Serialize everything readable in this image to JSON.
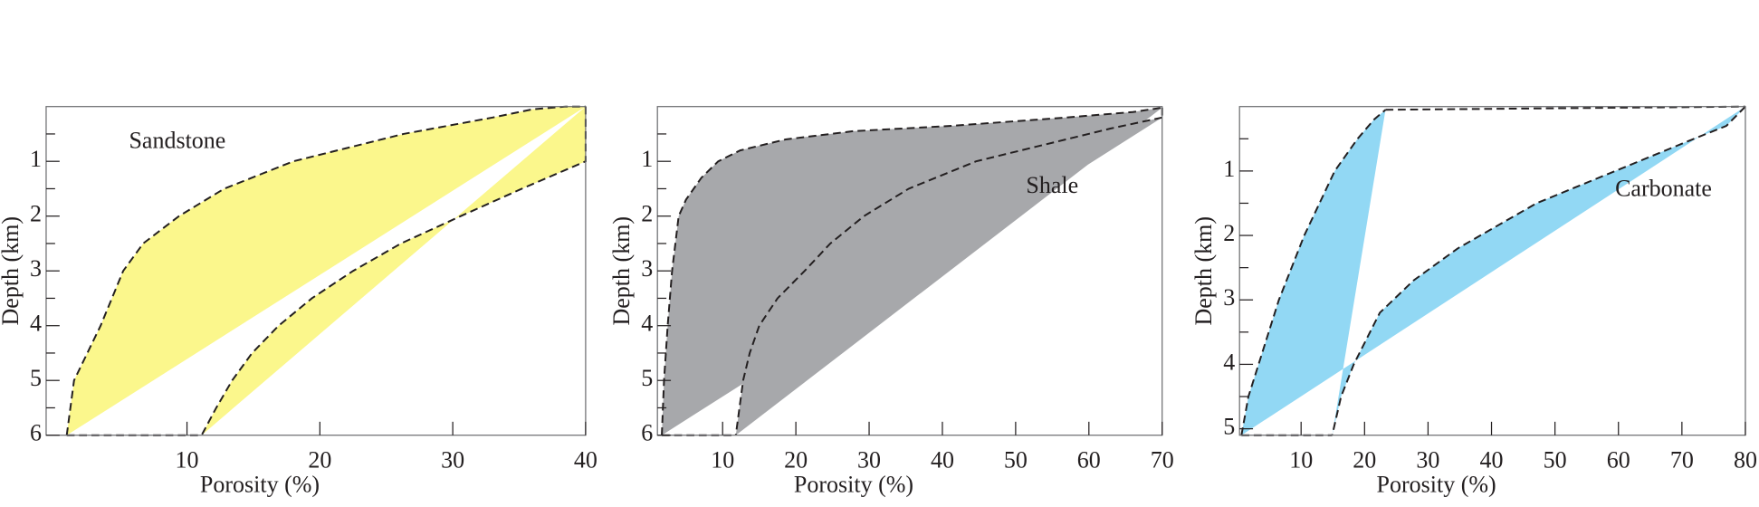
{
  "chart_data": [
    {
      "type": "band",
      "label": "Sandstone",
      "color": "#fbf78c",
      "x_label": "Porosity (%)",
      "y_label": "Depth (km)",
      "xlim": [
        -0.6,
        40
      ],
      "xticks": [
        10,
        20,
        30,
        40
      ],
      "ylim": [
        0,
        6
      ],
      "yticks": [
        1,
        2,
        3,
        4,
        5,
        6
      ],
      "yminor": [
        0.5,
        1.5,
        2.5,
        3.5,
        4.5,
        5.5
      ],
      "left": {
        "depth": [
          6,
          5,
          4.5,
          4,
          3,
          2.5,
          2,
          1.5,
          1,
          0.5,
          0.2,
          0.05,
          0,
          0
        ],
        "porosity": [
          0.95,
          1.5,
          2.5,
          3.5,
          5.2,
          6.7,
          9.4,
          12.8,
          18,
          26.3,
          33,
          36,
          38.5,
          40
        ]
      },
      "right": {
        "depth": [
          0,
          1,
          1.5,
          2,
          2.5,
          3,
          3.5,
          4,
          4.5,
          5,
          5.5,
          6
        ],
        "porosity": [
          40,
          40,
          35.2,
          30.6,
          26.1,
          22.5,
          19.4,
          16.9,
          14.9,
          13.4,
          12.2,
          11.1
        ]
      }
    },
    {
      "type": "band",
      "label": "Shale",
      "color": "#a7a8ab",
      "x_label": "Porosity (%)",
      "y_label": "Depth (km)",
      "xlim": [
        1.1,
        70
      ],
      "xticks": [
        10,
        20,
        30,
        40,
        50,
        60,
        70
      ],
      "ylim": [
        0,
        6
      ],
      "yticks": [
        1,
        2,
        3,
        4,
        5,
        6
      ],
      "yminor": [
        0.5,
        1.5,
        2.5,
        3.5,
        4.5,
        5.5
      ],
      "left": {
        "depth": [
          6,
          5,
          4,
          3,
          2,
          1.7,
          1.3,
          1,
          0.8,
          0.6,
          0.45,
          0.35,
          0.2,
          0.1,
          0.02
        ],
        "porosity": [
          1.7,
          2,
          2.5,
          3.1,
          4,
          5,
          7.1,
          9.4,
          12.4,
          18.6,
          27.8,
          41.5,
          56.9,
          66,
          70
        ]
      },
      "right": {
        "depth": [
          0.2,
          0.4,
          0.7,
          1,
          1.5,
          2,
          2.5,
          3,
          3.5,
          4,
          4.5,
          5,
          6
        ],
        "porosity": [
          70,
          63,
          53.8,
          44.6,
          35.4,
          29.3,
          24.7,
          21.2,
          17.5,
          15,
          13.7,
          12.8,
          11.8
        ]
      }
    },
    {
      "type": "band",
      "label": "Carbonate",
      "color": "#92d8f4",
      "x_label": "Porosity (%)",
      "y_label": "Depth (km)",
      "xlim": [
        0.3,
        80
      ],
      "xticks": [
        10,
        20,
        30,
        40,
        50,
        60,
        70,
        80
      ],
      "ylim": [
        0,
        5.1
      ],
      "yticks": [
        1,
        2,
        3,
        4,
        5
      ],
      "yminor": [
        0.5,
        1.5,
        2.5,
        3.5,
        4.5
      ],
      "left": {
        "depth": [
          5.1,
          4.5,
          4,
          3,
          2,
          1,
          0.5,
          0.2,
          0.05
        ],
        "porosity": [
          0.6,
          1.7,
          3.3,
          6.5,
          10.5,
          15.3,
          18.9,
          21.5,
          23.3
        ]
      },
      "right": {
        "depth": [
          0,
          0.3,
          0.5,
          1,
          1.5,
          1.8,
          2.2,
          2.7,
          3.2,
          4,
          4.5,
          5.1
        ],
        "porosity": [
          80,
          77,
          71.9,
          59.5,
          47.1,
          41.8,
          34.7,
          27.7,
          22.4,
          18.3,
          16.3,
          14.9
        ]
      }
    }
  ]
}
